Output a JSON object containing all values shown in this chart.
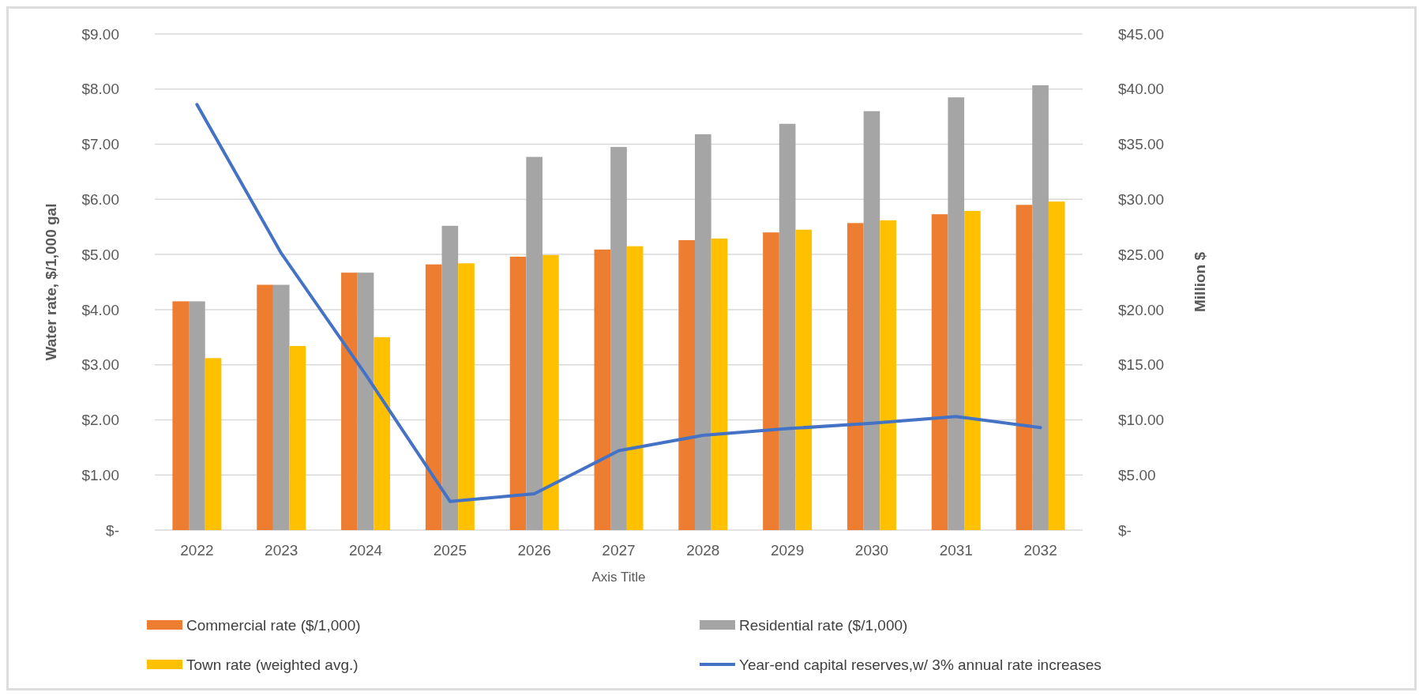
{
  "chart_data": {
    "type": "bar",
    "xlabel": "Axis Title",
    "ylabel": "Water rate, $/1,000 gal",
    "y2label": "Million $",
    "categories": [
      "2022",
      "2023",
      "2024",
      "2025",
      "2026",
      "2027",
      "2028",
      "2029",
      "2030",
      "2031",
      "2032"
    ],
    "series": [
      {
        "name": "Commercial rate ($/1,000)",
        "color": "#ed7d31",
        "values": [
          4.15,
          4.45,
          4.67,
          4.82,
          4.96,
          5.09,
          5.26,
          5.4,
          5.57,
          5.73,
          5.9
        ]
      },
      {
        "name": "Residential rate ($/1,000)",
        "color": "#a5a5a5",
        "values": [
          4.15,
          4.45,
          4.67,
          5.52,
          6.77,
          6.95,
          7.18,
          7.37,
          7.6,
          7.85,
          8.07
        ]
      },
      {
        "name": "Town rate (weighted avg.)",
        "color": "#ffc000",
        "values": [
          3.12,
          3.34,
          3.5,
          4.84,
          4.99,
          5.15,
          5.29,
          5.45,
          5.62,
          5.79,
          5.96
        ]
      },
      {
        "name": "Year-end capital reserves,w/ 3% annual rate increases",
        "type": "line",
        "axis": "y2",
        "color": "#4472c4",
        "values": [
          38.6,
          25.1,
          14.1,
          2.6,
          3.3,
          7.2,
          8.6,
          9.2,
          9.7,
          10.3,
          9.3
        ]
      }
    ],
    "ylim": [
      0,
      9
    ],
    "yticks": [
      {
        "value": 0,
        "label": "$-"
      },
      {
        "value": 1,
        "label": "$1.00"
      },
      {
        "value": 2,
        "label": "$2.00"
      },
      {
        "value": 3,
        "label": "$3.00"
      },
      {
        "value": 4,
        "label": "$4.00"
      },
      {
        "value": 5,
        "label": "$5.00"
      },
      {
        "value": 6,
        "label": "$6.00"
      },
      {
        "value": 7,
        "label": "$7.00"
      },
      {
        "value": 8,
        "label": "$8.00"
      },
      {
        "value": 9,
        "label": "$9.00"
      }
    ],
    "y2lim": [
      0,
      45
    ],
    "y2ticks": [
      {
        "value": 0,
        "label": "$-"
      },
      {
        "value": 5,
        "label": "$5.00"
      },
      {
        "value": 10,
        "label": "$10.00"
      },
      {
        "value": 15,
        "label": "$15.00"
      },
      {
        "value": 20,
        "label": "$20.00"
      },
      {
        "value": 25,
        "label": "$25.00"
      },
      {
        "value": 30,
        "label": "$30.00"
      },
      {
        "value": 35,
        "label": "$35.00"
      },
      {
        "value": 40,
        "label": "$40.00"
      },
      {
        "value": 45,
        "label": "$45.00"
      }
    ],
    "grid": "y",
    "legend": "bottom",
    "line_style": "solid"
  }
}
